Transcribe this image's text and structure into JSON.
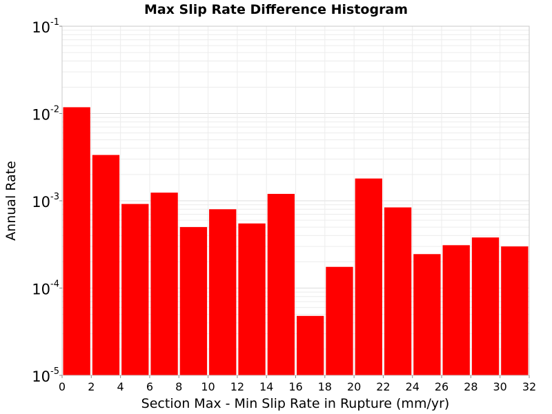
{
  "chart_data": {
    "type": "bar",
    "title": "Max Slip Rate Difference Histogram",
    "xlabel": "Section Max - Min Slip Rate in Rupture (mm/yr)",
    "ylabel": "Annual Rate",
    "x_ticks": [
      "0",
      "2",
      "4",
      "6",
      "8",
      "10",
      "12",
      "14",
      "16",
      "18",
      "20",
      "22",
      "24",
      "26",
      "28",
      "30",
      "32"
    ],
    "y_ticks": [
      {
        "base": "10",
        "exp": "-1"
      },
      {
        "base": "10",
        "exp": "-2"
      },
      {
        "base": "10",
        "exp": "-3"
      },
      {
        "base": "10",
        "exp": "-4"
      },
      {
        "base": "10",
        "exp": "-5"
      }
    ],
    "xlim": [
      0,
      32
    ],
    "ylim": [
      1e-05,
      0.1
    ],
    "y_scale": "log",
    "grid": true,
    "bar_color": "#ff0000",
    "bin_width": 2,
    "bins": [
      {
        "x0": 0,
        "x1": 2,
        "value": 0.0118
      },
      {
        "x0": 2,
        "x1": 4,
        "value": 0.00335
      },
      {
        "x0": 4,
        "x1": 6,
        "value": 0.00092
      },
      {
        "x0": 6,
        "x1": 8,
        "value": 0.00124
      },
      {
        "x0": 8,
        "x1": 10,
        "value": 0.0005
      },
      {
        "x0": 10,
        "x1": 12,
        "value": 0.0008
      },
      {
        "x0": 12,
        "x1": 14,
        "value": 0.00055
      },
      {
        "x0": 14,
        "x1": 16,
        "value": 0.0012
      },
      {
        "x0": 16,
        "x1": 18,
        "value": 4.8e-05
      },
      {
        "x0": 18,
        "x1": 20,
        "value": 0.000175
      },
      {
        "x0": 20,
        "x1": 22,
        "value": 0.0018
      },
      {
        "x0": 22,
        "x1": 24,
        "value": 0.00084
      },
      {
        "x0": 24,
        "x1": 26,
        "value": 0.000245
      },
      {
        "x0": 26,
        "x1": 28,
        "value": 0.00031
      },
      {
        "x0": 28,
        "x1": 30,
        "value": 0.00038
      },
      {
        "x0": 30,
        "x1": 32,
        "value": 0.0003
      }
    ]
  }
}
